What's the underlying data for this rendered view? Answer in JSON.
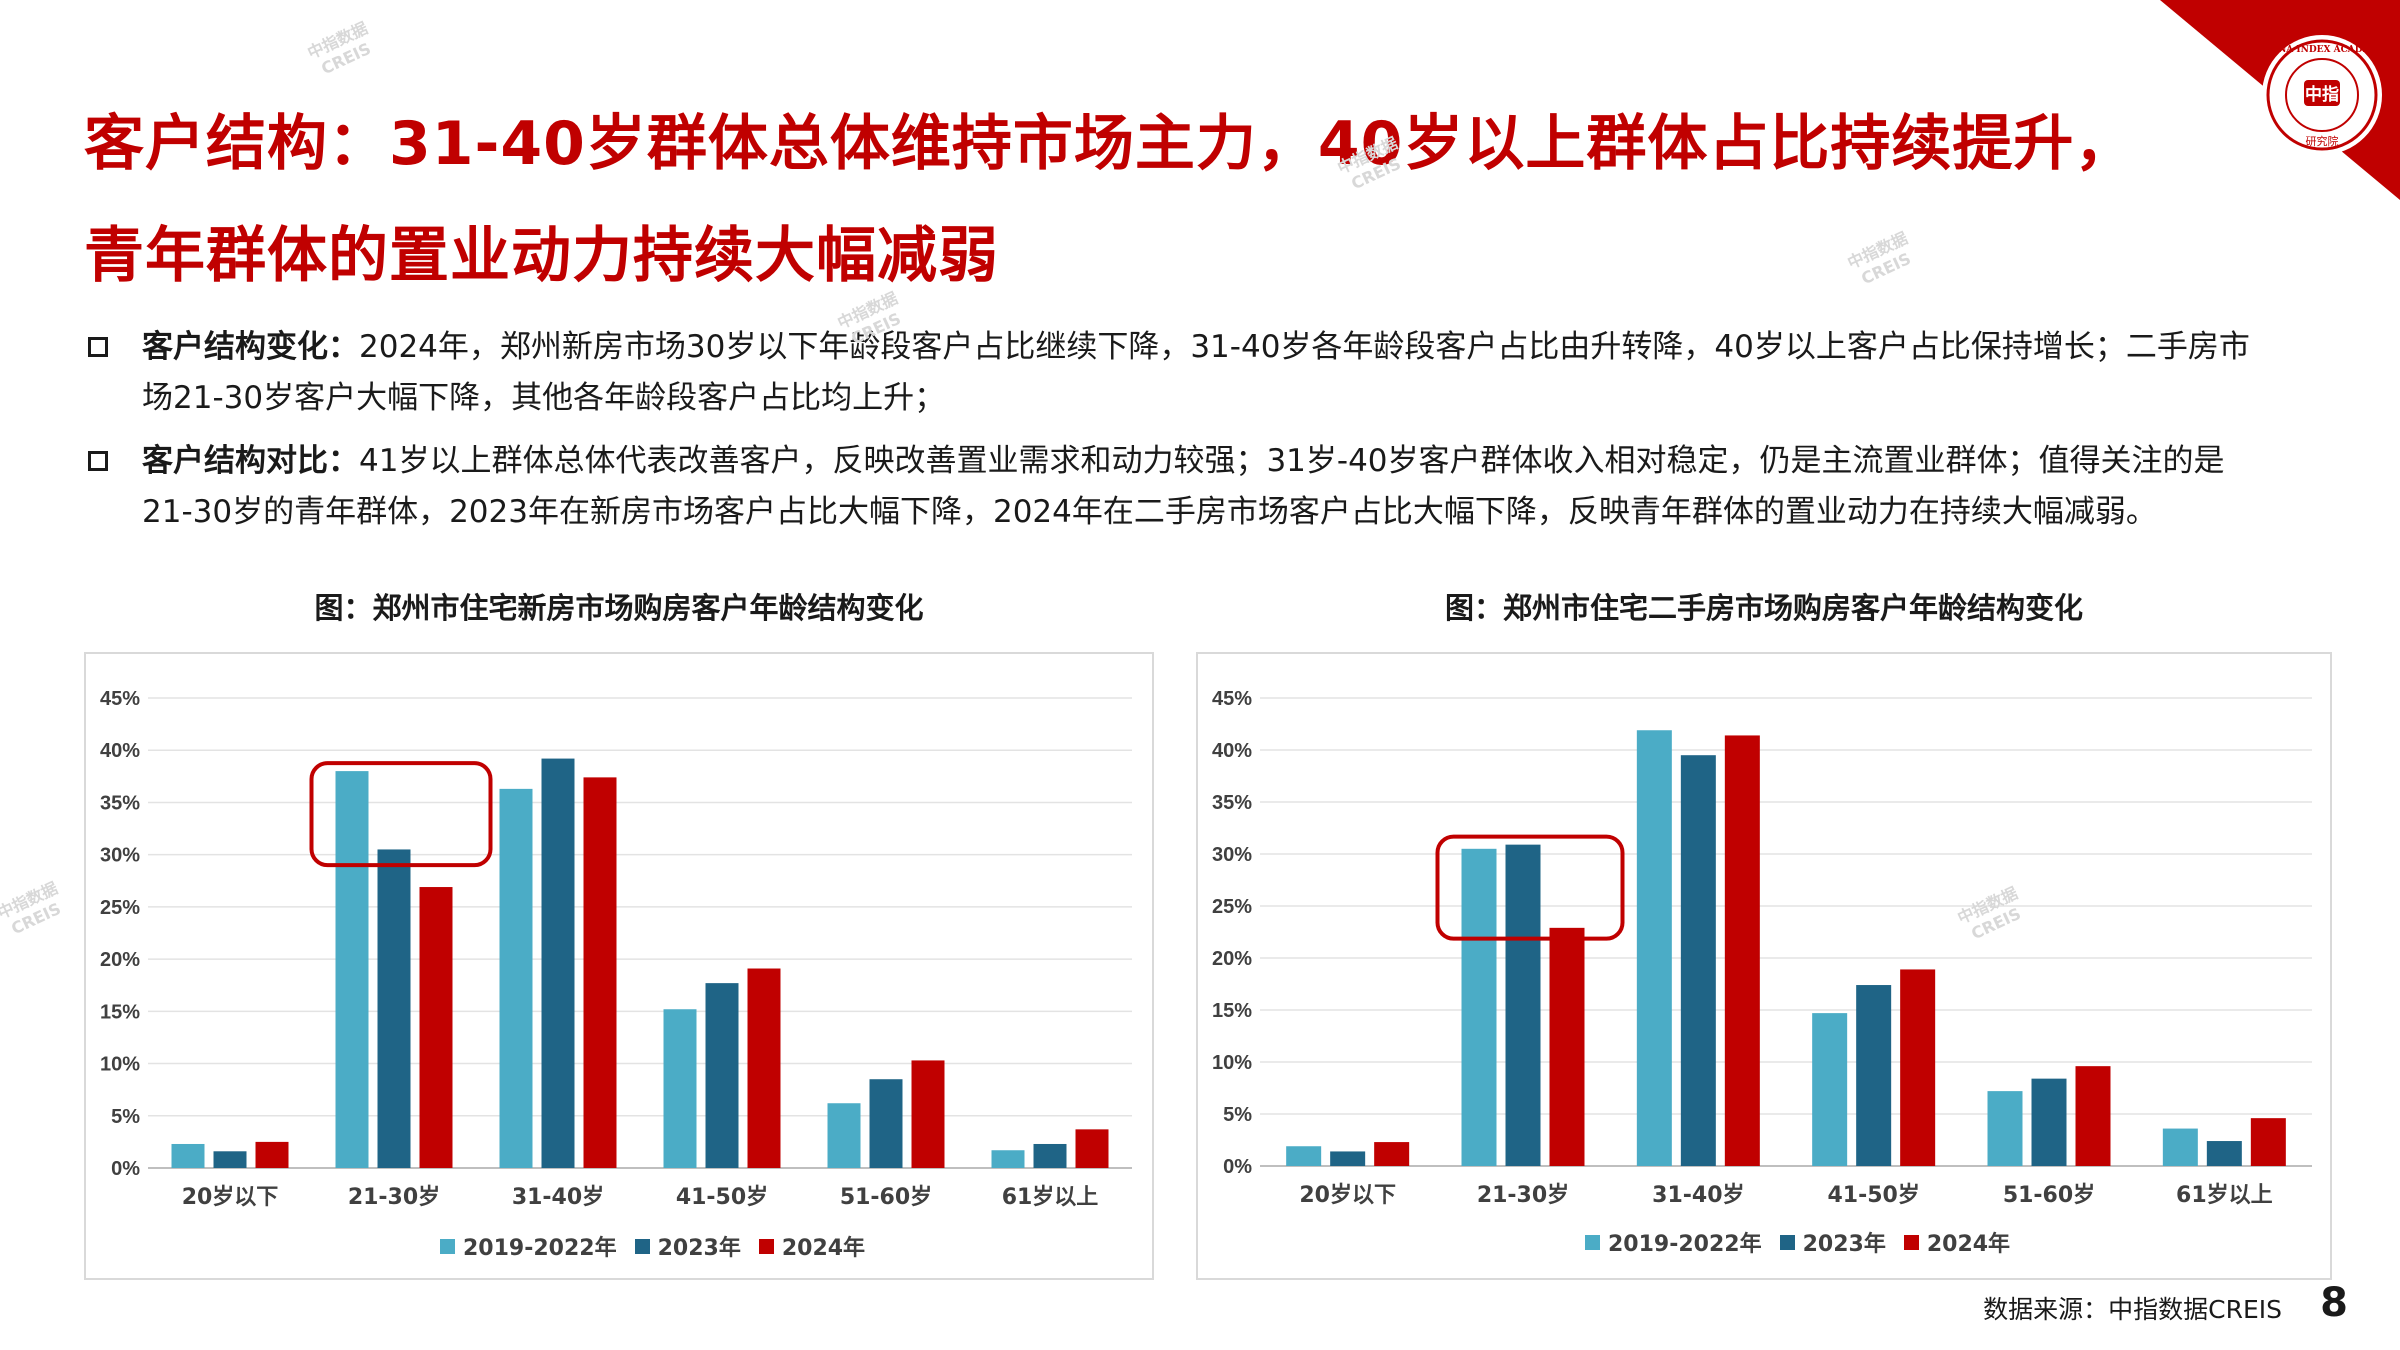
{
  "title": "客户结构：31-40岁群体总体维持市场主力，40岁以上群体占比持续提升，青年群体的置业动力持续大幅减弱",
  "logo": {
    "text_top": "CHINA INDEX ACADEMY",
    "text_center": "中指",
    "text_bottom": "研究院",
    "color": "#c00000"
  },
  "bullets": [
    {
      "label": "客户结构变化：",
      "text": "2024年，郑州新房市场30岁以下年龄段客户占比继续下降，31-40岁各年龄段客户占比由升转降，40岁以上客户占比保持增长；二手房市场21-30岁客户大幅下降，其他各年龄段客户占比均上升；"
    },
    {
      "label": "客户结构对比：",
      "text": "41岁以上群体总体代表改善客户，反映改善置业需求和动力较强；31岁-40岁客户群体收入相对稳定，仍是主流置业群体；值得关注的是21-30岁的青年群体，2023年在新房市场客户占比大幅下降，2024年在二手房市场客户占比大幅下降，反映青年群体的置业动力在持续大幅减弱。"
    }
  ],
  "colors": {
    "s1": "#4bacc6",
    "s2": "#1f6486",
    "s3": "#c00000",
    "accent": "#c00000"
  },
  "chart_data": [
    {
      "type": "bar",
      "title": "图：郑州市住宅新房市场购房客户年龄结构变化",
      "categories": [
        "20岁以下",
        "21-30岁",
        "31-40岁",
        "41-50岁",
        "51-60岁",
        "61岁以上"
      ],
      "series": [
        {
          "name": "2019-2022年",
          "values": [
            2.3,
            38.0,
            36.3,
            15.2,
            6.2,
            1.7
          ]
        },
        {
          "name": "2023年",
          "values": [
            1.6,
            30.5,
            39.2,
            17.7,
            8.5,
            2.3
          ]
        },
        {
          "name": "2024年",
          "values": [
            2.5,
            26.9,
            37.4,
            19.1,
            10.3,
            3.7
          ]
        }
      ],
      "yticks": [
        "0%",
        "5%",
        "10%",
        "15%",
        "20%",
        "25%",
        "30%",
        "35%",
        "40%",
        "45%"
      ],
      "ylim": [
        0,
        45
      ],
      "highlight_category": "21-30岁",
      "legend_position": "bottom"
    },
    {
      "type": "bar",
      "title": "图：郑州市住宅二手房市场购房客户年龄结构变化",
      "categories": [
        "20岁以下",
        "21-30岁",
        "31-40岁",
        "41-50岁",
        "51-60岁",
        "61岁以上"
      ],
      "series": [
        {
          "name": "2019-2022年",
          "values": [
            1.9,
            30.5,
            41.9,
            14.7,
            7.2,
            3.6
          ]
        },
        {
          "name": "2023年",
          "values": [
            1.4,
            30.9,
            39.5,
            17.4,
            8.4,
            2.4
          ]
        },
        {
          "name": "2024年",
          "values": [
            2.3,
            22.9,
            41.4,
            18.9,
            9.6,
            4.6
          ]
        }
      ],
      "yticks": [
        "0%",
        "5%",
        "10%",
        "15%",
        "20%",
        "25%",
        "30%",
        "35%",
        "40%",
        "45%"
      ],
      "ylim": [
        0,
        45
      ],
      "highlight_category": "21-30岁",
      "legend_position": "bottom"
    }
  ],
  "source": "数据来源：中指数据CREIS",
  "page_number": "8",
  "watermark": {
    "cn": "中指数据",
    "en": "CREIS"
  }
}
